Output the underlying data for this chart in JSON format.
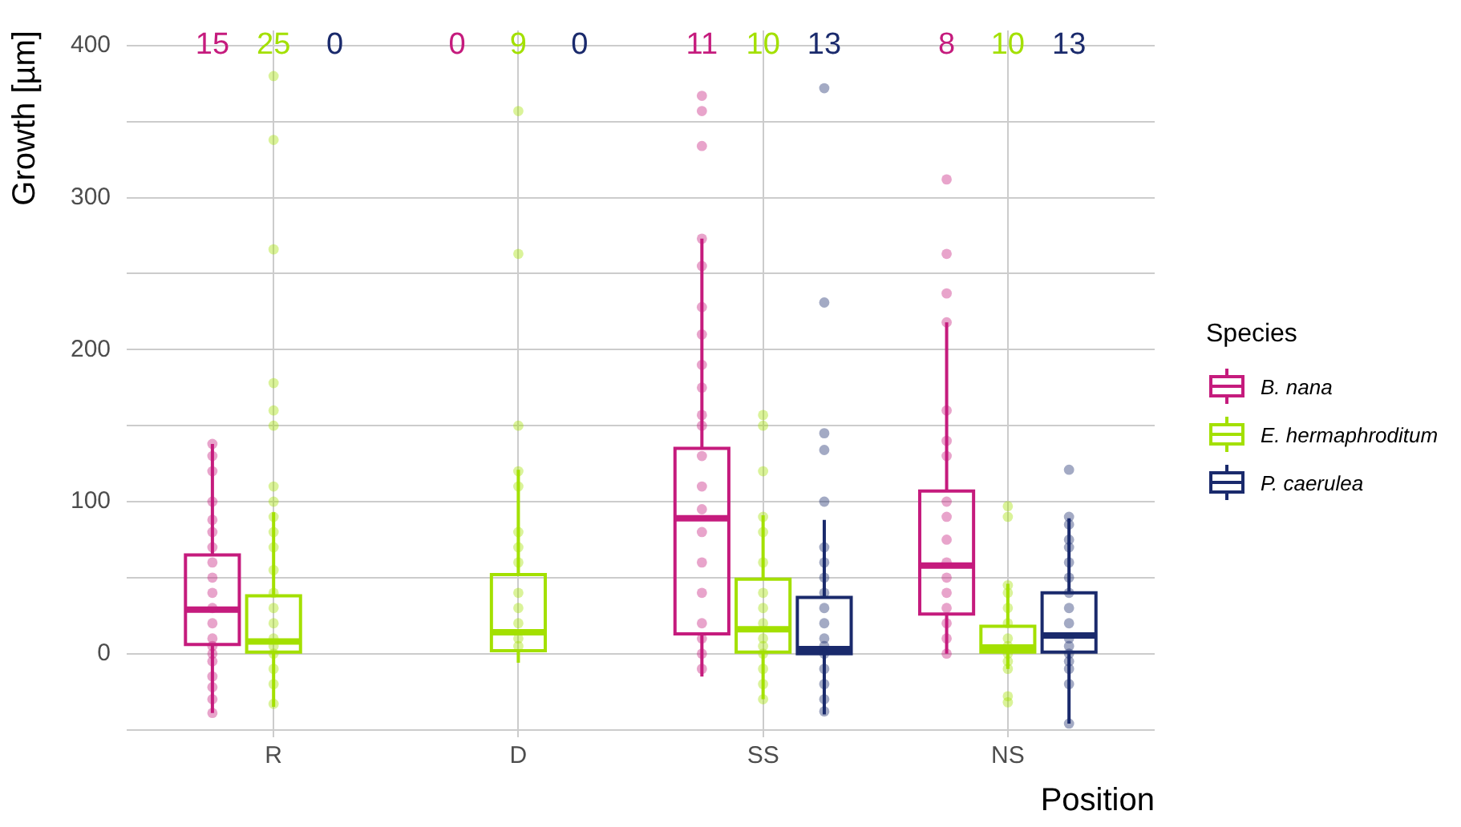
{
  "chart_data": {
    "type": "box",
    "xlabel": "Position",
    "ylabel": "Growth [µm]",
    "legend_title": "Species",
    "legend": "right",
    "grid": true,
    "marker": "circle",
    "categories": [
      "R",
      "D",
      "SS",
      "NS"
    ],
    "ylim": [
      -55,
      410
    ],
    "yticks": [
      {
        "value": -50,
        "label": null
      },
      0,
      {
        "value": 50,
        "label": null
      },
      100,
      {
        "value": 150,
        "label": null
      },
      200,
      {
        "value": 250,
        "label": null
      },
      300,
      {
        "value": 350,
        "label": null
      },
      400
    ],
    "series": [
      {
        "name": "B. nana",
        "color": "#c51b7d",
        "value_labels": [
          "15",
          "0",
          "11",
          "8"
        ],
        "boxes": [
          {
            "low": -39,
            "q1": 6,
            "median": 29,
            "q3": 65,
            "high": 138
          },
          null,
          {
            "low": -15,
            "q1": 13,
            "median": 89,
            "q3": 135,
            "high": 273
          },
          {
            "low": 0,
            "q1": 26,
            "median": 58,
            "q3": 107,
            "high": 218
          }
        ]
      },
      {
        "name": "E. hermaphroditum",
        "color": "#a3e000",
        "value_labels": [
          "25",
          "9",
          "10",
          "10"
        ],
        "boxes": [
          {
            "low": -35,
            "q1": 1,
            "median": 8,
            "q3": 38,
            "high": 93
          },
          {
            "low": -6,
            "q1": 2,
            "median": 14,
            "q3": 52,
            "high": 121
          },
          {
            "low": -30,
            "q1": 1,
            "median": 16,
            "q3": 49,
            "high": 91
          },
          {
            "low": -10,
            "q1": 1,
            "median": 4,
            "q3": 18,
            "high": 46
          }
        ]
      },
      {
        "name": "P. caerulea",
        "color": "#1a2a6c",
        "value_labels": [
          "0",
          "0",
          "13",
          "13"
        ],
        "boxes": [
          null,
          null,
          {
            "low": -40,
            "q1": 0,
            "median": 3,
            "q3": 37,
            "high": 88
          },
          {
            "low": -46,
            "q1": 1,
            "median": 12,
            "q3": 40,
            "high": 89
          }
        ]
      },
      {
        "type": "scatter",
        "color": "#c51b7d",
        "x": [
          "R",
          "R",
          "R",
          "R",
          "R",
          "R",
          "R",
          "R",
          "R",
          "R",
          "R",
          "R",
          "R",
          "R",
          "R",
          "R",
          "R",
          "R",
          "R",
          "R",
          "SS",
          "SS",
          "SS",
          "SS",
          "SS",
          "SS",
          "SS",
          "SS",
          "SS",
          "SS",
          "SS",
          "SS",
          "SS",
          "SS",
          "SS",
          "SS",
          "SS",
          "SS",
          "SS",
          "SS",
          "SS",
          "NS",
          "NS",
          "NS",
          "NS",
          "NS",
          "NS",
          "NS",
          "NS",
          "NS",
          "NS",
          "NS",
          "NS",
          "NS",
          "NS",
          "NS",
          "NS",
          "NS"
        ],
        "values": [
          138,
          130,
          120,
          100,
          88,
          80,
          70,
          60,
          50,
          40,
          30,
          20,
          10,
          5,
          0,
          -5,
          -15,
          -22,
          -30,
          -39,
          367,
          357,
          334,
          273,
          255,
          228,
          210,
          190,
          175,
          157,
          150,
          130,
          110,
          95,
          80,
          60,
          40,
          20,
          10,
          0,
          -10,
          312,
          263,
          237,
          218,
          160,
          140,
          130,
          100,
          90,
          75,
          60,
          50,
          40,
          30,
          20,
          10,
          0
        ]
      },
      {
        "type": "scatter",
        "color": "#a3e000",
        "x": [
          "R",
          "R",
          "R",
          "R",
          "R",
          "R",
          "R",
          "R",
          "R",
          "R",
          "R",
          "R",
          "R",
          "R",
          "R",
          "R",
          "R",
          "R",
          "R",
          "R",
          "R",
          "D",
          "D",
          "D",
          "D",
          "D",
          "D",
          "D",
          "D",
          "D",
          "D",
          "D",
          "D",
          "D",
          "SS",
          "SS",
          "SS",
          "SS",
          "SS",
          "SS",
          "SS",
          "SS",
          "SS",
          "SS",
          "SS",
          "SS",
          "SS",
          "SS",
          "SS",
          "NS",
          "NS",
          "NS",
          "NS",
          "NS",
          "NS",
          "NS",
          "NS",
          "NS",
          "NS",
          "NS",
          "NS",
          "NS"
        ],
        "values": [
          380,
          338,
          266,
          178,
          160,
          150,
          110,
          100,
          90,
          80,
          70,
          55,
          40,
          30,
          20,
          10,
          5,
          0,
          -10,
          -20,
          -33,
          357,
          263,
          150,
          120,
          110,
          80,
          70,
          60,
          40,
          30,
          20,
          10,
          5,
          157,
          150,
          120,
          90,
          80,
          60,
          40,
          30,
          20,
          10,
          5,
          0,
          -10,
          -20,
          -30,
          97,
          90,
          45,
          40,
          30,
          20,
          10,
          5,
          0,
          -5,
          -10,
          -28,
          -32
        ]
      },
      {
        "type": "scatter",
        "color": "#1a2a6c",
        "x": [
          "SS",
          "SS",
          "SS",
          "SS",
          "SS",
          "SS",
          "SS",
          "SS",
          "SS",
          "SS",
          "SS",
          "SS",
          "SS",
          "SS",
          "SS",
          "SS",
          "SS",
          "SS",
          "NS",
          "NS",
          "NS",
          "NS",
          "NS",
          "NS",
          "NS",
          "NS",
          "NS",
          "NS",
          "NS",
          "NS",
          "NS",
          "NS",
          "NS",
          "NS",
          "NS"
        ],
        "values": [
          372,
          231,
          145,
          134,
          100,
          70,
          60,
          50,
          40,
          30,
          20,
          10,
          5,
          0,
          -10,
          -20,
          -30,
          -38,
          121,
          90,
          85,
          75,
          70,
          60,
          50,
          40,
          30,
          20,
          10,
          5,
          0,
          -5,
          -10,
          -20,
          -46
        ]
      }
    ]
  }
}
